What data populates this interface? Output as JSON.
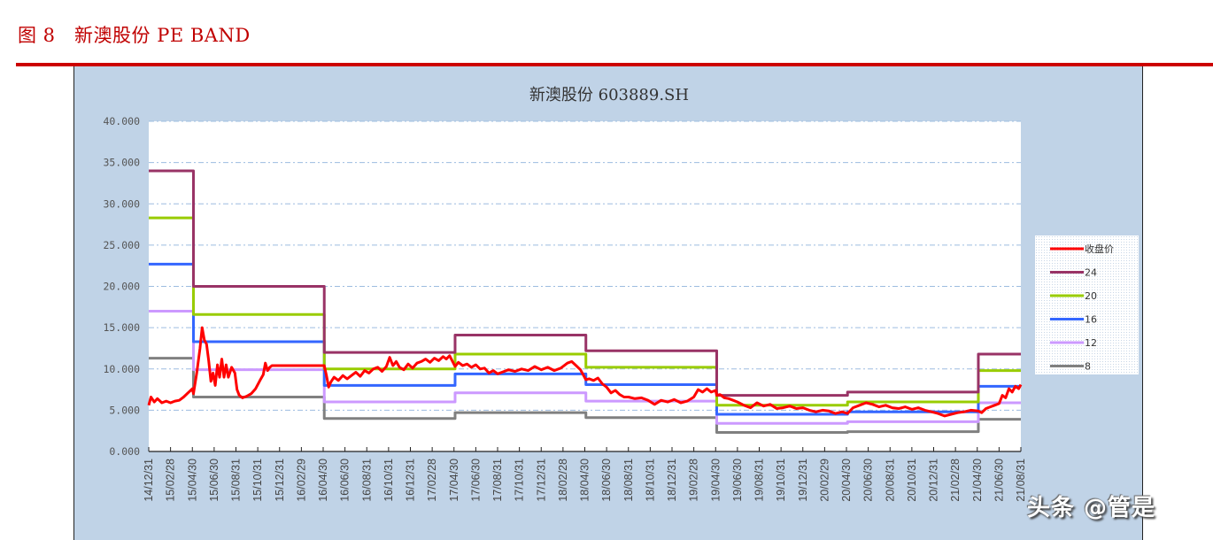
{
  "figure": {
    "title": "图 8   新澳股份 PE BAND"
  },
  "watermark": "头条 @管是",
  "chart_data": {
    "type": "line",
    "title": "新澳股份 603889.SH",
    "xlabel": "",
    "ylabel": "",
    "ylim": [
      0,
      40
    ],
    "yticks": [
      "0.000",
      "5.000",
      "10.000",
      "15.000",
      "20.000",
      "25.000",
      "30.000",
      "35.000",
      "40.000"
    ],
    "grid": true,
    "legend_position": "right",
    "x_tick_labels": [
      "14/12/31",
      "15/02/28",
      "15/04/30",
      "15/06/30",
      "15/08/31",
      "15/10/31",
      "15/12/31",
      "16/02/29",
      "16/04/30",
      "16/06/30",
      "16/08/31",
      "16/10/31",
      "16/12/31",
      "17/02/28",
      "17/04/30",
      "17/06/30",
      "17/08/31",
      "17/10/31",
      "17/12/31",
      "18/02/28",
      "18/04/30",
      "18/06/30",
      "18/08/31",
      "18/10/31",
      "18/12/31",
      "19/02/28",
      "19/04/30",
      "19/06/30",
      "19/08/31",
      "19/10/31",
      "19/12/31",
      "20/02/29",
      "20/04/30",
      "20/06/30",
      "20/08/31",
      "20/10/31",
      "20/12/31",
      "21/02/28",
      "21/04/30",
      "21/06/30",
      "21/08/31"
    ],
    "x_unit": "tick index (bimonthly), 0 = 14/12/31, 40 = 21/08/31",
    "band_breaks": [
      0,
      2.05,
      8.05,
      14.05,
      20.05,
      26.05,
      32.05,
      38.05,
      40
    ],
    "series": [
      {
        "name": "收盘价",
        "color": "#ff0000",
        "width": 3,
        "points": [
          [
            0,
            5.6
          ],
          [
            0.1,
            6.6
          ],
          [
            0.25,
            6.0
          ],
          [
            0.4,
            6.4
          ],
          [
            0.6,
            5.9
          ],
          [
            0.8,
            6.1
          ],
          [
            1.0,
            5.9
          ],
          [
            1.2,
            6.1
          ],
          [
            1.4,
            6.2
          ],
          [
            1.6,
            6.6
          ],
          [
            1.8,
            7.1
          ],
          [
            2.0,
            7.6
          ],
          [
            2.05,
            7.0
          ],
          [
            2.2,
            9.5
          ],
          [
            2.35,
            12.5
          ],
          [
            2.45,
            15.0
          ],
          [
            2.55,
            13.5
          ],
          [
            2.65,
            13.0
          ],
          [
            2.75,
            11.0
          ],
          [
            2.85,
            8.5
          ],
          [
            2.95,
            9.5
          ],
          [
            3.05,
            8.0
          ],
          [
            3.15,
            10.5
          ],
          [
            3.25,
            9.0
          ],
          [
            3.35,
            11.2
          ],
          [
            3.45,
            9.0
          ],
          [
            3.55,
            10.5
          ],
          [
            3.65,
            9.0
          ],
          [
            3.8,
            10.2
          ],
          [
            3.95,
            9.5
          ],
          [
            4.05,
            7.5
          ],
          [
            4.15,
            6.8
          ],
          [
            4.3,
            6.5
          ],
          [
            4.5,
            6.7
          ],
          [
            4.7,
            7.0
          ],
          [
            4.9,
            7.6
          ],
          [
            5.1,
            8.6
          ],
          [
            5.25,
            9.3
          ],
          [
            5.35,
            10.7
          ],
          [
            5.45,
            9.8
          ],
          [
            5.55,
            10.2
          ],
          [
            5.65,
            10.4
          ],
          [
            8.05,
            10.4
          ],
          [
            8.15,
            9.2
          ],
          [
            8.25,
            7.8
          ],
          [
            8.35,
            8.4
          ],
          [
            8.5,
            9.0
          ],
          [
            8.7,
            8.6
          ],
          [
            8.9,
            9.2
          ],
          [
            9.1,
            8.8
          ],
          [
            9.3,
            9.2
          ],
          [
            9.5,
            9.6
          ],
          [
            9.7,
            9.1
          ],
          [
            9.9,
            9.8
          ],
          [
            10.1,
            9.5
          ],
          [
            10.3,
            10.0
          ],
          [
            10.5,
            10.2
          ],
          [
            10.7,
            9.7
          ],
          [
            10.9,
            10.3
          ],
          [
            11.05,
            11.4
          ],
          [
            11.2,
            10.4
          ],
          [
            11.35,
            10.9
          ],
          [
            11.5,
            10.2
          ],
          [
            11.7,
            9.9
          ],
          [
            11.9,
            10.6
          ],
          [
            12.1,
            10.1
          ],
          [
            12.3,
            10.7
          ],
          [
            12.5,
            10.9
          ],
          [
            12.7,
            11.2
          ],
          [
            12.9,
            10.8
          ],
          [
            13.1,
            11.3
          ],
          [
            13.3,
            11.0
          ],
          [
            13.5,
            11.5
          ],
          [
            13.65,
            11.2
          ],
          [
            13.8,
            11.6
          ],
          [
            14.05,
            10.3
          ],
          [
            14.2,
            10.8
          ],
          [
            14.4,
            10.4
          ],
          [
            14.6,
            10.6
          ],
          [
            14.8,
            10.2
          ],
          [
            15.0,
            10.5
          ],
          [
            15.2,
            10.0
          ],
          [
            15.4,
            10.1
          ],
          [
            15.6,
            9.5
          ],
          [
            15.8,
            9.8
          ],
          [
            16.0,
            9.4
          ],
          [
            16.2,
            9.6
          ],
          [
            16.5,
            9.9
          ],
          [
            16.8,
            9.7
          ],
          [
            17.1,
            10.0
          ],
          [
            17.4,
            9.8
          ],
          [
            17.7,
            10.3
          ],
          [
            18.0,
            9.9
          ],
          [
            18.3,
            10.2
          ],
          [
            18.6,
            9.8
          ],
          [
            18.9,
            10.1
          ],
          [
            19.2,
            10.7
          ],
          [
            19.4,
            10.9
          ],
          [
            19.6,
            10.4
          ],
          [
            19.8,
            9.9
          ],
          [
            20.05,
            8.7
          ],
          [
            20.2,
            8.8
          ],
          [
            20.4,
            8.6
          ],
          [
            20.6,
            8.9
          ],
          [
            20.8,
            8.2
          ],
          [
            21.0,
            7.8
          ],
          [
            21.2,
            7.1
          ],
          [
            21.4,
            7.4
          ],
          [
            21.6,
            6.9
          ],
          [
            21.8,
            6.6
          ],
          [
            22.0,
            6.6
          ],
          [
            22.3,
            6.4
          ],
          [
            22.6,
            6.5
          ],
          [
            22.9,
            6.2
          ],
          [
            23.2,
            5.7
          ],
          [
            23.5,
            6.2
          ],
          [
            23.8,
            6.0
          ],
          [
            24.1,
            6.3
          ],
          [
            24.4,
            5.9
          ],
          [
            24.7,
            6.1
          ],
          [
            25.0,
            6.6
          ],
          [
            25.2,
            7.5
          ],
          [
            25.4,
            7.2
          ],
          [
            25.6,
            7.6
          ],
          [
            25.8,
            7.2
          ],
          [
            26.0,
            7.4
          ],
          [
            26.05,
            6.8
          ],
          [
            26.2,
            6.9
          ],
          [
            26.4,
            6.5
          ],
          [
            26.6,
            6.4
          ],
          [
            26.8,
            6.2
          ],
          [
            27.0,
            6.0
          ],
          [
            27.3,
            5.6
          ],
          [
            27.6,
            5.3
          ],
          [
            27.9,
            5.9
          ],
          [
            28.2,
            5.5
          ],
          [
            28.5,
            5.7
          ],
          [
            28.8,
            5.2
          ],
          [
            29.1,
            5.3
          ],
          [
            29.4,
            5.5
          ],
          [
            29.7,
            5.2
          ],
          [
            30.0,
            5.3
          ],
          [
            30.3,
            5.0
          ],
          [
            30.6,
            4.8
          ],
          [
            30.9,
            5.0
          ],
          [
            31.2,
            4.9
          ],
          [
            31.5,
            4.6
          ],
          [
            31.8,
            4.8
          ],
          [
            32.05,
            4.6
          ],
          [
            32.3,
            5.3
          ],
          [
            32.6,
            5.6
          ],
          [
            32.9,
            5.9
          ],
          [
            33.2,
            5.7
          ],
          [
            33.5,
            5.4
          ],
          [
            33.8,
            5.6
          ],
          [
            34.1,
            5.3
          ],
          [
            34.4,
            5.2
          ],
          [
            34.7,
            5.4
          ],
          [
            35.0,
            5.1
          ],
          [
            35.3,
            5.3
          ],
          [
            35.6,
            5.0
          ],
          [
            35.9,
            4.8
          ],
          [
            36.2,
            4.6
          ],
          [
            36.5,
            4.3
          ],
          [
            36.8,
            4.5
          ],
          [
            37.1,
            4.7
          ],
          [
            37.4,
            4.8
          ],
          [
            37.7,
            5.0
          ],
          [
            38.05,
            4.9
          ],
          [
            38.2,
            4.7
          ],
          [
            38.4,
            5.2
          ],
          [
            38.6,
            5.4
          ],
          [
            38.8,
            5.6
          ],
          [
            39.0,
            5.8
          ],
          [
            39.15,
            6.8
          ],
          [
            39.3,
            6.5
          ],
          [
            39.45,
            7.6
          ],
          [
            39.6,
            7.2
          ],
          [
            39.75,
            7.9
          ],
          [
            39.9,
            7.6
          ],
          [
            40.0,
            8.1
          ]
        ]
      },
      {
        "name": "24",
        "color": "#993366",
        "width": 3,
        "levels": [
          34.0,
          20.0,
          12.0,
          14.1,
          12.2,
          6.8,
          7.2,
          11.8
        ]
      },
      {
        "name": "20",
        "color": "#99cc00",
        "width": 3,
        "levels": [
          28.3,
          16.6,
          10.0,
          11.8,
          10.2,
          5.6,
          6.0,
          9.8
        ]
      },
      {
        "name": "16",
        "color": "#3366ff",
        "width": 3,
        "levels": [
          22.7,
          13.3,
          8.0,
          9.4,
          8.1,
          4.5,
          4.8,
          7.9
        ]
      },
      {
        "name": "12",
        "color": "#cc99ff",
        "width": 3,
        "levels": [
          17.0,
          9.9,
          6.0,
          7.1,
          6.1,
          3.4,
          3.6,
          5.9
        ]
      },
      {
        "name": "8",
        "color": "#808080",
        "width": 3,
        "levels": [
          11.3,
          6.6,
          4.0,
          4.7,
          4.1,
          2.3,
          2.4,
          3.9
        ]
      }
    ]
  }
}
